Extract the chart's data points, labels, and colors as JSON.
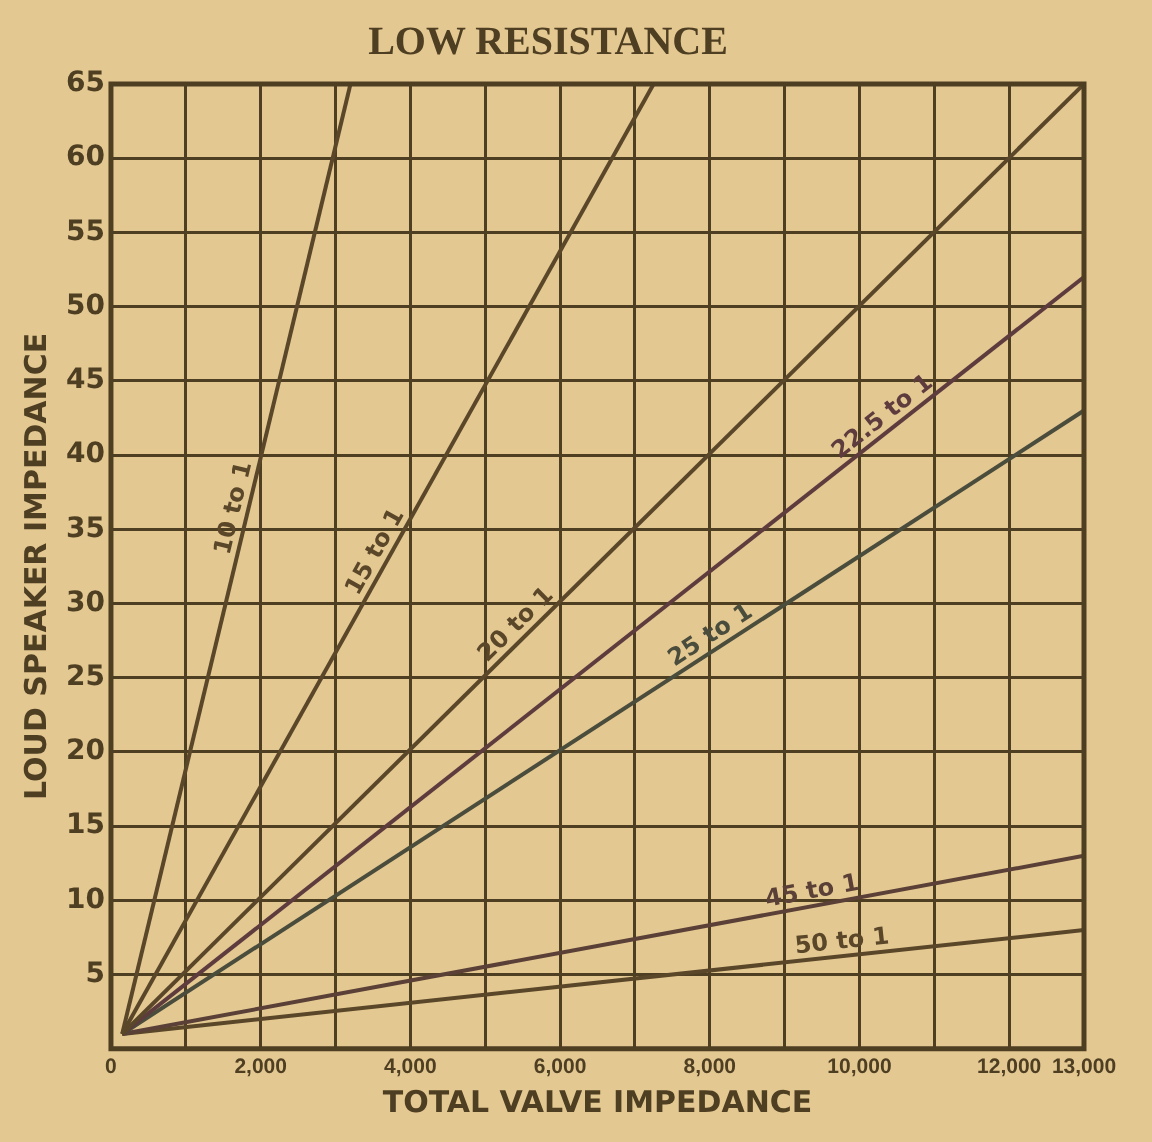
{
  "chart_data": {
    "type": "line",
    "title": "LOW RESISTANCE",
    "xlabel": "TOTAL VALVE IMPEDANCE",
    "ylabel": "LOUD SPEAKER IMPEDANCE",
    "series": [
      {
        "name": "10 to 1",
        "color": "#5a4628",
        "x": [
          150,
          3200
        ],
        "values": [
          1,
          65
        ]
      },
      {
        "name": "15 to 1",
        "color": "#5a4628",
        "x": [
          150,
          7250
        ],
        "values": [
          1,
          65
        ]
      },
      {
        "name": "20 to 1",
        "color": "#5a4628",
        "x": [
          150,
          13000
        ],
        "values": [
          1,
          65
        ]
      },
      {
        "name": "22.5 to 1",
        "color": "#5e3c3e",
        "x": [
          150,
          13000
        ],
        "values": [
          1,
          52
        ]
      },
      {
        "name": "25 to 1",
        "color": "#4a4c3c",
        "x": [
          150,
          13000
        ],
        "values": [
          1,
          43
        ]
      },
      {
        "name": "45 to 1",
        "color": "#5a4036",
        "x": [
          150,
          13000
        ],
        "values": [
          1,
          13
        ]
      },
      {
        "name": "50 to 1",
        "color": "#5a4628",
        "x": [
          150,
          13000
        ],
        "values": [
          1,
          8
        ]
      }
    ],
    "xlim": [
      0,
      13000
    ],
    "ylim": [
      0,
      65
    ],
    "xticks": [
      {
        "value": 0,
        "label": "0"
      },
      {
        "value": 1000,
        "label": null
      },
      {
        "value": 2000,
        "label": "2,000"
      },
      {
        "value": 3000,
        "label": null
      },
      {
        "value": 4000,
        "label": "4,000"
      },
      {
        "value": 5000,
        "label": null
      },
      {
        "value": 6000,
        "label": "6,000"
      },
      {
        "value": 7000,
        "label": null
      },
      {
        "value": 8000,
        "label": "8,000"
      },
      {
        "value": 9000,
        "label": null
      },
      {
        "value": 10000,
        "label": "10,000"
      },
      {
        "value": 11000,
        "label": null
      },
      {
        "value": 12000,
        "label": "12,000"
      },
      {
        "value": 13000,
        "label": "13,000"
      }
    ],
    "yticks": [
      {
        "value": 0,
        "label": null
      },
      5,
      10,
      15,
      20,
      25,
      30,
      35,
      40,
      45,
      50,
      55,
      60,
      65
    ],
    "grid": true,
    "legend": false
  }
}
